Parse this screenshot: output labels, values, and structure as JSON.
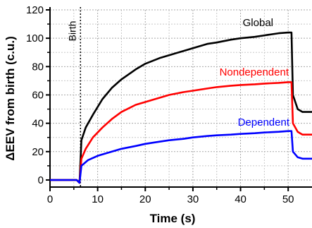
{
  "chart_data": {
    "type": "line",
    "xlabel": "Time (s)",
    "ylabel": "ΔEEV from birth (c.u.)",
    "xlim": [
      0,
      55
    ],
    "ylim": [
      -5,
      120
    ],
    "xticks": [
      0,
      10,
      20,
      30,
      40,
      50
    ],
    "yticks": [
      0,
      20,
      40,
      60,
      80,
      100,
      120
    ],
    "grid": true,
    "annotation": {
      "text": "Birth",
      "x": 6.4
    },
    "series": [
      {
        "name": "Global",
        "color": "#000000",
        "x": [
          0,
          5.6,
          6.2,
          6.6,
          7.5,
          9,
          11,
          13,
          15,
          18,
          20,
          23,
          25,
          28,
          30,
          33,
          35,
          38,
          40,
          43,
          45,
          48,
          50,
          50.7,
          51,
          52,
          53,
          55
        ],
        "y": [
          0,
          0,
          -2,
          28,
          37,
          46,
          57,
          65,
          71,
          78,
          82,
          86,
          88,
          91,
          93,
          96,
          97,
          99,
          100,
          101,
          102,
          103.5,
          104,
          104,
          60,
          50,
          48,
          48
        ]
      },
      {
        "name": "Nondependent",
        "color": "#ff0000",
        "x": [
          0,
          5.6,
          6.2,
          6.6,
          7.5,
          9,
          11,
          13,
          15,
          18,
          20,
          23,
          25,
          28,
          30,
          33,
          35,
          38,
          40,
          43,
          45,
          48,
          50,
          50.7,
          51,
          52,
          53,
          55
        ],
        "y": [
          0,
          0,
          -2,
          15,
          22,
          30,
          37,
          43,
          48,
          53,
          55,
          58,
          60,
          62,
          63,
          64.5,
          65.5,
          66.5,
          67,
          67.5,
          68,
          68.5,
          69,
          69,
          40,
          34,
          32,
          32
        ]
      },
      {
        "name": "Dependent",
        "color": "#0000ff",
        "x": [
          0,
          5.6,
          6.2,
          6.6,
          8,
          10,
          13,
          15,
          18,
          20,
          23,
          25,
          28,
          30,
          33,
          35,
          38,
          40,
          43,
          45,
          48,
          50,
          50.7,
          51,
          52,
          53,
          55
        ],
        "y": [
          0,
          0,
          -2,
          10,
          14,
          17,
          20,
          22,
          24,
          25.5,
          27,
          28,
          29,
          30,
          31,
          31.5,
          32,
          32.5,
          33,
          33.5,
          34,
          34.5,
          34.5,
          20,
          16,
          15,
          15
        ]
      }
    ]
  }
}
